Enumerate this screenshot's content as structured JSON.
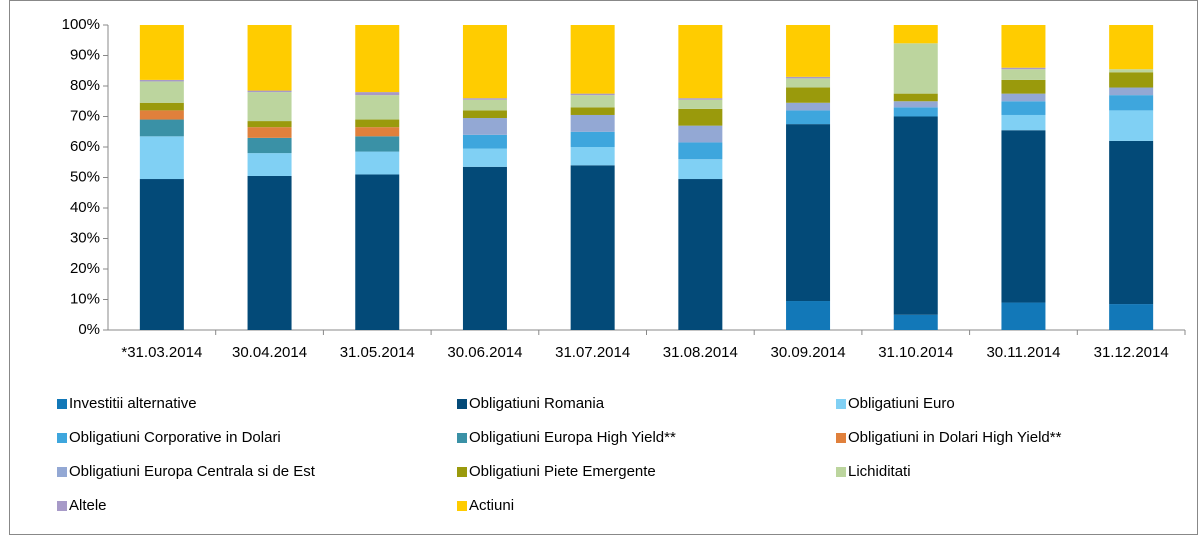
{
  "chart_data": {
    "type": "stacked_bar",
    "categories": [
      "*31.03.2014",
      "30.04.2014",
      "31.05.2014",
      "30.06.2014",
      "31.07.2014",
      "31.08.2014",
      "30.09.2014",
      "31.10.2014",
      "30.11.2014",
      "31.12.2014"
    ],
    "ylim": [
      0,
      100
    ],
    "yticks": [
      {
        "value": 0,
        "label": "0%"
      },
      {
        "value": 10,
        "label": "10%"
      },
      {
        "value": 20,
        "label": "20%"
      },
      {
        "value": 30,
        "label": "30%"
      },
      {
        "value": 40,
        "label": "40%"
      },
      {
        "value": 50,
        "label": "50%"
      },
      {
        "value": 60,
        "label": "60%"
      },
      {
        "value": 70,
        "label": "70%"
      },
      {
        "value": 80,
        "label": "80%"
      },
      {
        "value": 90,
        "label": "90%"
      },
      {
        "value": 100,
        "label": "100%"
      }
    ],
    "series": [
      {
        "name": "Investitii alternative",
        "color": "#1278b8",
        "values": [
          0,
          0,
          0,
          0,
          0,
          0,
          9.5,
          5,
          9,
          8.5
        ]
      },
      {
        "name": "Obligatiuni Romania",
        "color": "#034a78",
        "values": [
          49.5,
          50.5,
          51,
          53.5,
          54,
          49.5,
          58,
          65,
          56.5,
          53.5
        ]
      },
      {
        "name": "Obligatiuni Euro",
        "color": "#80d0f4",
        "values": [
          14,
          7.5,
          7.5,
          6,
          6,
          6.5,
          0,
          0,
          5,
          10
        ]
      },
      {
        "name": "Obligatiuni Corporative in Dolari",
        "color": "#3ea6dd",
        "values": [
          0,
          0,
          0,
          4.5,
          5,
          5.5,
          4.5,
          3,
          4.5,
          5
        ]
      },
      {
        "name": "Obligatiuni Europa High Yield**",
        "color": "#3a91a6",
        "values": [
          5.5,
          5,
          5,
          0,
          0,
          0,
          0,
          0,
          0,
          0
        ]
      },
      {
        "name": "Obligatiuni in Dolari High Yield**",
        "color": "#e0803c",
        "values": [
          3,
          3.5,
          3,
          0,
          0,
          0,
          0,
          0,
          0,
          0
        ]
      },
      {
        "name": "Obligatiuni Europa Centrala si de Est",
        "color": "#93a8d4",
        "values": [
          0,
          0,
          0,
          5.5,
          5.5,
          5.5,
          2.5,
          2,
          2.5,
          2.5
        ]
      },
      {
        "name": "Obligatiuni Piete Emergente",
        "color": "#9a9a0c",
        "values": [
          2.5,
          2,
          2.5,
          2.5,
          2.5,
          5.5,
          5,
          2.5,
          4.5,
          5
        ]
      },
      {
        "name": "Lichiditati",
        "color": "#bcd59e",
        "values": [
          7,
          9.5,
          8,
          3.5,
          4,
          3,
          3,
          16.5,
          3.5,
          1
        ]
      },
      {
        "name": "Altele",
        "color": "#a79ac8",
        "values": [
          0.5,
          0.5,
          1,
          0.5,
          0.5,
          0.5,
          0.5,
          0,
          0.5,
          0
        ]
      },
      {
        "name": "Actiuni",
        "color": "#ffcc00",
        "values": [
          18,
          21.5,
          22,
          24,
          22.5,
          24,
          17,
          6,
          14,
          14.5
        ]
      }
    ]
  }
}
